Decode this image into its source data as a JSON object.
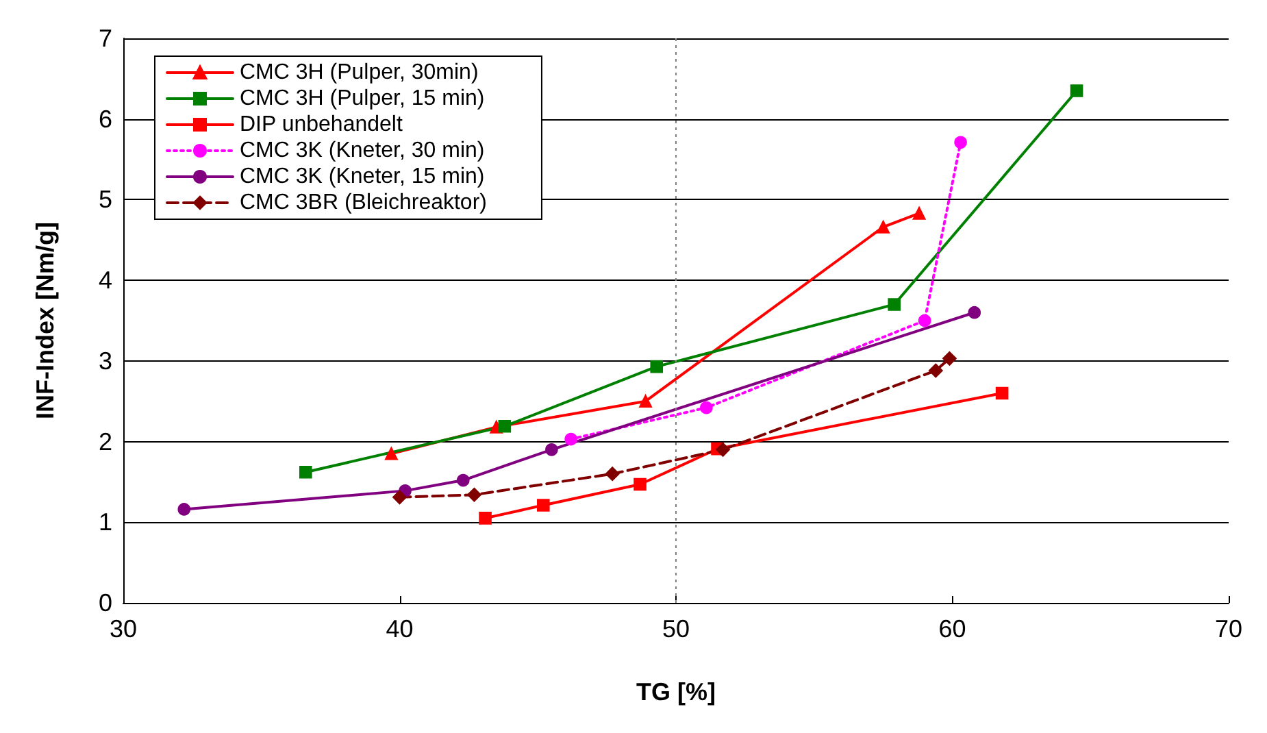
{
  "chart_data": {
    "type": "line",
    "xlabel": "TG [%]",
    "ylabel": "INF-Index [Nm/g]",
    "xlim": [
      30,
      70
    ],
    "xticks": [
      30,
      40,
      50,
      60,
      70
    ],
    "ylim": [
      0,
      7
    ],
    "yticks": [
      0,
      1,
      2,
      3,
      4,
      5,
      6,
      7
    ],
    "grid": "y",
    "legend": "top left",
    "ref_lines": [
      {
        "axis": "x",
        "value": 50,
        "color": "#808080",
        "line_style": "dotted"
      }
    ],
    "series": [
      {
        "name": "CMC 3H (Pulper, 30min)",
        "color": "#ff0000",
        "marker": "triangle",
        "line_style": "solid",
        "x": [
          39.7,
          43.5,
          48.9,
          57.5,
          58.8
        ],
        "values": [
          1.85,
          2.18,
          2.5,
          4.66,
          4.83
        ]
      },
      {
        "name": "CMC 3H (Pulper, 15 min)",
        "color": "#008000",
        "marker": "square",
        "line_style": "solid",
        "x": [
          36.6,
          43.8,
          49.3,
          57.9,
          64.5
        ],
        "values": [
          1.62,
          2.19,
          2.93,
          3.7,
          6.35
        ]
      },
      {
        "name": "DIP unbehandelt",
        "color": "#ff0000",
        "marker": "square",
        "line_style": "solid",
        "x": [
          43.1,
          45.2,
          48.7,
          51.5,
          61.8
        ],
        "values": [
          1.05,
          1.21,
          1.47,
          1.91,
          2.6
        ]
      },
      {
        "name": "CMC 3K (Kneter, 30 min)",
        "color": "#ff00ff",
        "marker": "circle",
        "line_style": "dotted",
        "x": [
          46.2,
          51.1,
          59.0,
          60.3
        ],
        "values": [
          2.03,
          2.42,
          3.5,
          5.71
        ]
      },
      {
        "name": "CMC 3K (Kneter, 15 min)",
        "color": "#800080",
        "marker": "circle",
        "line_style": "solid",
        "x": [
          32.2,
          40.2,
          42.3,
          45.5,
          60.8
        ],
        "values": [
          1.16,
          1.39,
          1.52,
          1.9,
          3.6
        ]
      },
      {
        "name": "CMC 3BR (Bleichreaktor)",
        "color": "#800000",
        "marker": "diamond",
        "line_style": "dashed",
        "x": [
          40.0,
          42.7,
          47.7,
          51.7,
          59.4,
          59.9
        ],
        "values": [
          1.31,
          1.34,
          1.6,
          1.9,
          2.88,
          3.03
        ]
      }
    ]
  }
}
